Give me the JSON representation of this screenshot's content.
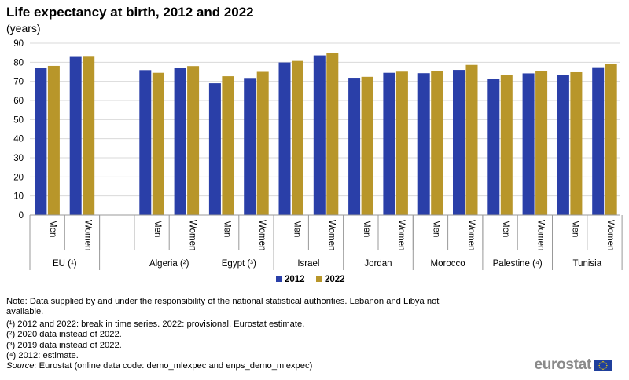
{
  "chart_data": {
    "type": "bar",
    "title": "Life expectancy at birth, 2012 and 2022",
    "subtitle": "(years)",
    "ylim": [
      0,
      90
    ],
    "yticks": [
      0,
      10,
      20,
      30,
      40,
      50,
      60,
      70,
      80,
      90
    ],
    "grid": true,
    "legend_position": "bottom",
    "series": [
      {
        "name": "2012",
        "color": "#2a3fa8"
      },
      {
        "name": "2022",
        "color": "#b8962a"
      }
    ],
    "groups": [
      {
        "label": "EU (¹)",
        "items": [
          {
            "label": "Men",
            "values": [
              77.1,
              78.1
            ]
          },
          {
            "label": "Women",
            "values": [
              83.2,
              83.3
            ]
          }
        ]
      },
      {
        "label": "Algeria (²)",
        "items": [
          {
            "label": "Men",
            "values": [
              75.9,
              74.5
            ]
          },
          {
            "label": "Women",
            "values": [
              77.2,
              78.0
            ]
          }
        ]
      },
      {
        "label": "Egypt (³)",
        "items": [
          {
            "label": "Men",
            "values": [
              69.0,
              72.7
            ]
          },
          {
            "label": "Women",
            "values": [
              71.8,
              75.0
            ]
          }
        ]
      },
      {
        "label": "Israel",
        "items": [
          {
            "label": "Men",
            "values": [
              79.9,
              80.7
            ]
          },
          {
            "label": "Women",
            "values": [
              83.6,
              85.0
            ]
          }
        ]
      },
      {
        "label": "Jordan",
        "items": [
          {
            "label": "Men",
            "values": [
              71.9,
              72.4
            ]
          },
          {
            "label": "Women",
            "values": [
              74.5,
              75.1
            ]
          }
        ]
      },
      {
        "label": "Morocco",
        "items": [
          {
            "label": "Men",
            "values": [
              74.3,
              75.3
            ]
          },
          {
            "label": "Women",
            "values": [
              76.0,
              78.6
            ]
          }
        ]
      },
      {
        "label": "Palestine (⁴)",
        "items": [
          {
            "label": "Men",
            "values": [
              71.5,
              73.2
            ]
          },
          {
            "label": "Women",
            "values": [
              74.2,
              75.3
            ]
          }
        ]
      },
      {
        "label": "Tunisia",
        "items": [
          {
            "label": "Men",
            "values": [
              73.2,
              74.8
            ]
          },
          {
            "label": "Women",
            "values": [
              77.4,
              79.2
            ]
          }
        ]
      }
    ]
  },
  "notes": {
    "note": "Note: Data supplied by and under the responsibility of the national statistical authorities. Lebanon and Libya not available.",
    "footnotes": [
      "(¹) 2012 and 2022: break in time series. 2022: provisional,  Eurostat estimate.",
      "(²) 2020 data instead of 2022.",
      "(³) 2019 data instead of 2022.",
      "(⁴) 2012: estimate."
    ],
    "source_label": "Source:",
    "source_text": " Eurostat (online data code: demo_mlexpec and enps_demo_mlexpec)"
  },
  "logo": {
    "text": "eurostat",
    "flag_color": "#1f3f9c",
    "star_color": "#f5d000"
  }
}
